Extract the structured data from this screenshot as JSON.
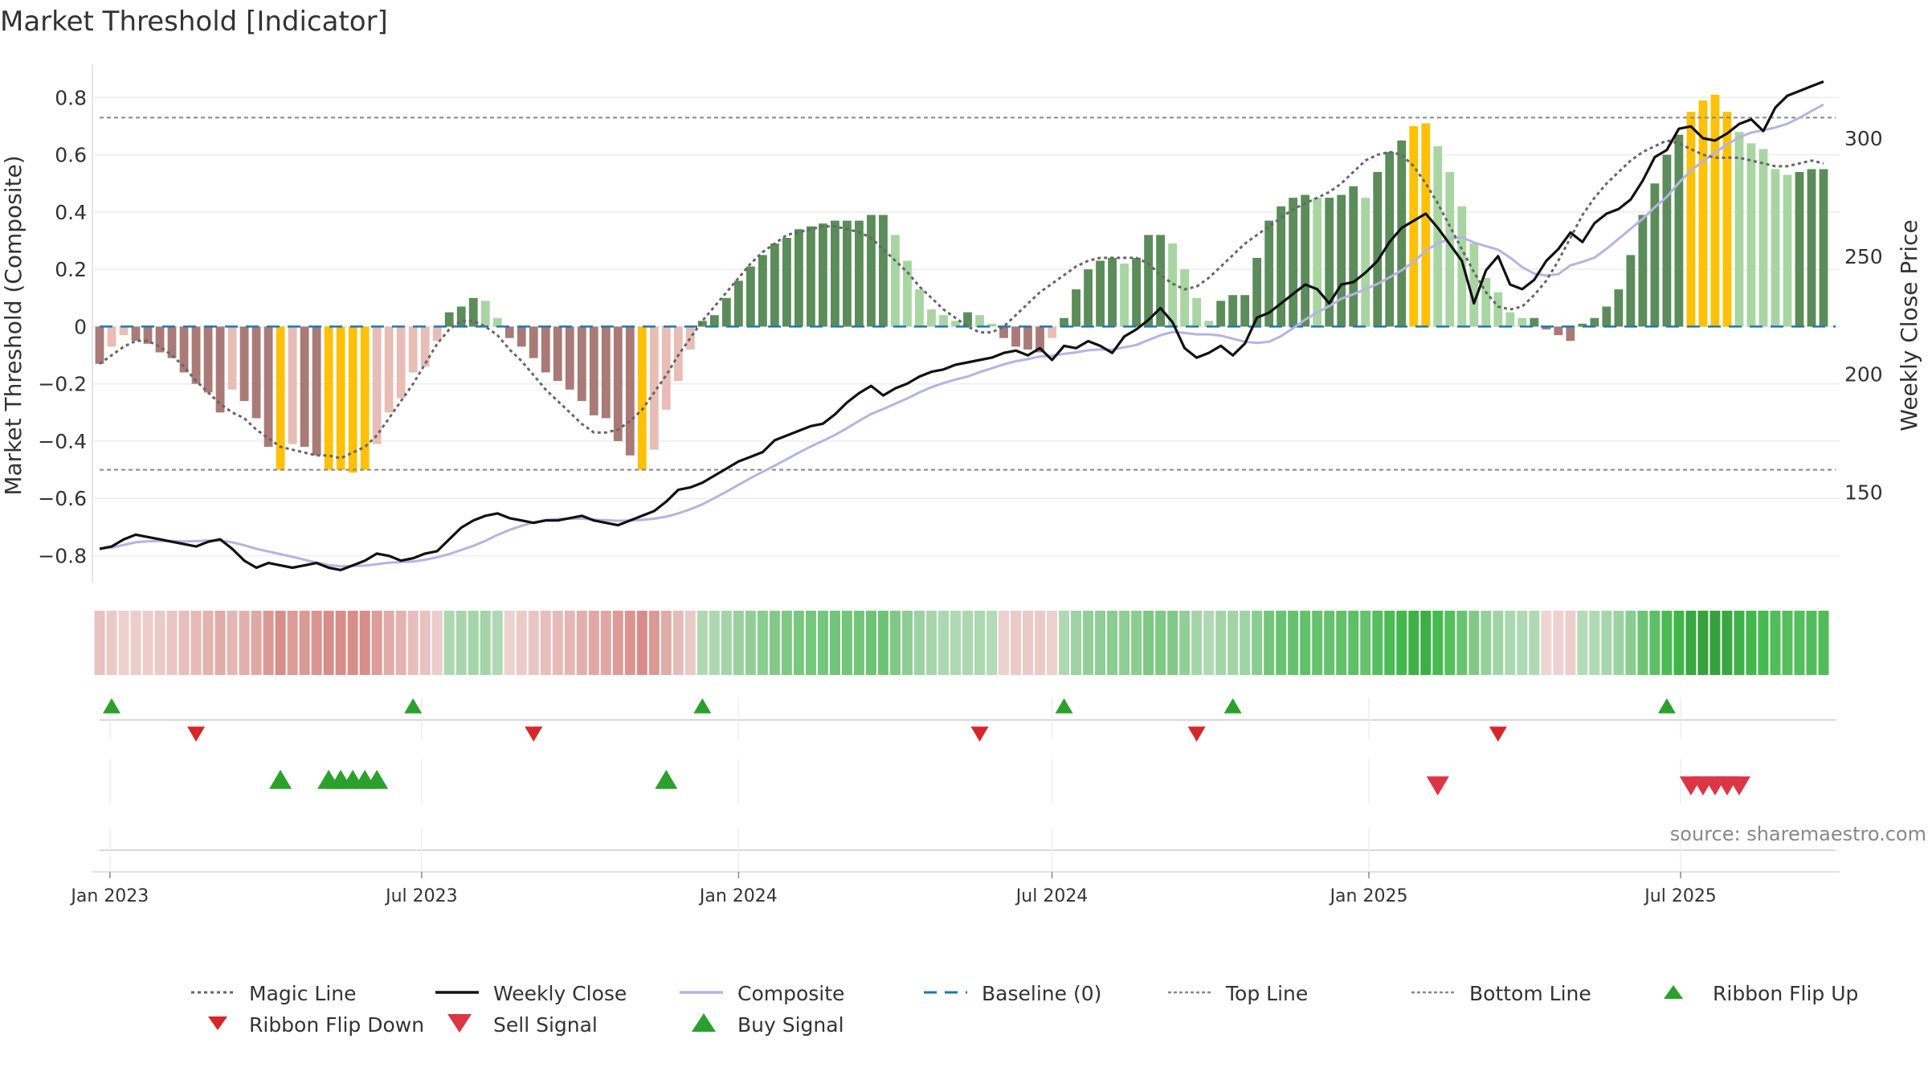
{
  "chart_data": {
    "type": "bar",
    "title": "Market Threshold [Indicator]",
    "ylabel": "Market Threshold (Composite)",
    "y2label": "Weekly Close Price",
    "source": "source: sharemaestro.com",
    "ylim": [
      -0.88,
      0.86
    ],
    "y2lim": [
      113.4,
      324.5
    ],
    "x_start": "2022-12-26",
    "x_end": "2025-09-22",
    "weeks": [
      "2022-12-26",
      "2023-01-02",
      "2023-01-09",
      "2023-01-16",
      "2023-01-23",
      "2023-01-30",
      "2023-02-06",
      "2023-02-13",
      "2023-02-20",
      "2023-02-27",
      "2023-03-06",
      "2023-03-13",
      "2023-03-20",
      "2023-03-27",
      "2023-04-03",
      "2023-04-10",
      "2023-04-17",
      "2023-04-24",
      "2023-05-01",
      "2023-05-08",
      "2023-05-15",
      "2023-05-22",
      "2023-05-29",
      "2023-06-05",
      "2023-06-12",
      "2023-06-19",
      "2023-06-26",
      "2023-07-03",
      "2023-07-10",
      "2023-07-17",
      "2023-07-24",
      "2023-07-31",
      "2023-08-07",
      "2023-08-14",
      "2023-08-21",
      "2023-08-28",
      "2023-09-04",
      "2023-09-11",
      "2023-09-18",
      "2023-09-25",
      "2023-10-02",
      "2023-10-09",
      "2023-10-16",
      "2023-10-23",
      "2023-10-30",
      "2023-11-06",
      "2023-11-13",
      "2023-11-20",
      "2023-11-27",
      "2023-12-04",
      "2023-12-11",
      "2023-12-18",
      "2023-12-25",
      "2024-01-01",
      "2024-01-08",
      "2024-01-15",
      "2024-01-22",
      "2024-01-29",
      "2024-02-05",
      "2024-02-12",
      "2024-02-19",
      "2024-02-26",
      "2024-03-04",
      "2024-03-11",
      "2024-03-18",
      "2024-03-25",
      "2024-04-01",
      "2024-04-08",
      "2024-04-15",
      "2024-04-22",
      "2024-04-29",
      "2024-05-06",
      "2024-05-13",
      "2024-05-20",
      "2024-05-27",
      "2024-06-03",
      "2024-06-10",
      "2024-06-17",
      "2024-06-24",
      "2024-07-01",
      "2024-07-08",
      "2024-07-15",
      "2024-07-22",
      "2024-07-29",
      "2024-08-05",
      "2024-08-12",
      "2024-08-19",
      "2024-08-26",
      "2024-09-02",
      "2024-09-09",
      "2024-09-16",
      "2024-09-23",
      "2024-09-30",
      "2024-10-07",
      "2024-10-14",
      "2024-10-21",
      "2024-10-28",
      "2024-11-04",
      "2024-11-11",
      "2024-11-18",
      "2024-11-25",
      "2024-12-02",
      "2024-12-09",
      "2024-12-16",
      "2024-12-23",
      "2024-12-30",
      "2025-01-06",
      "2025-01-13",
      "2025-01-20",
      "2025-01-27",
      "2025-02-03",
      "2025-02-10",
      "2025-02-17",
      "2025-02-24",
      "2025-03-03",
      "2025-03-10",
      "2025-03-17",
      "2025-03-24",
      "2025-03-31",
      "2025-04-07",
      "2025-04-14",
      "2025-04-21",
      "2025-04-28",
      "2025-05-05",
      "2025-05-12",
      "2025-05-19",
      "2025-05-26",
      "2025-06-02",
      "2025-06-09",
      "2025-06-16",
      "2025-06-23",
      "2025-06-30",
      "2025-07-07",
      "2025-07-14",
      "2025-07-21",
      "2025-07-28",
      "2025-08-04",
      "2025-08-11",
      "2025-08-18",
      "2025-08-25",
      "2025-09-01",
      "2025-09-08",
      "2025-09-15",
      "2025-09-22"
    ],
    "composite": [
      -0.13,
      -0.07,
      -0.03,
      -0.05,
      -0.06,
      -0.09,
      -0.11,
      -0.16,
      -0.2,
      -0.23,
      -0.3,
      -0.22,
      -0.26,
      -0.32,
      -0.42,
      -0.5,
      -0.41,
      -0.42,
      -0.45,
      -0.5,
      -0.5,
      -0.51,
      -0.5,
      -0.41,
      -0.3,
      -0.25,
      -0.16,
      -0.14,
      -0.05,
      0.05,
      0.07,
      0.1,
      0.09,
      0.03,
      -0.04,
      -0.07,
      -0.11,
      -0.16,
      -0.19,
      -0.22,
      -0.26,
      -0.31,
      -0.32,
      -0.4,
      -0.45,
      -0.5,
      -0.43,
      -0.29,
      -0.19,
      -0.08,
      0.02,
      0.04,
      0.1,
      0.16,
      0.21,
      0.25,
      0.29,
      0.31,
      0.34,
      0.35,
      0.36,
      0.37,
      0.37,
      0.37,
      0.39,
      0.39,
      0.32,
      0.23,
      0.13,
      0.06,
      0.04,
      0.02,
      0.05,
      0.04,
      0.01,
      -0.04,
      -0.07,
      -0.08,
      -0.09,
      -0.04,
      0.03,
      0.13,
      0.2,
      0.23,
      0.24,
      0.22,
      0.24,
      0.32,
      0.32,
      0.29,
      0.2,
      0.1,
      0.02,
      0.09,
      0.11,
      0.11,
      0.24,
      0.37,
      0.42,
      0.45,
      0.46,
      0.45,
      0.45,
      0.46,
      0.49,
      0.45,
      0.54,
      0.61,
      0.65,
      0.7,
      0.71,
      0.63,
      0.54,
      0.42,
      0.29,
      0.17,
      0.12,
      0.05,
      0.03,
      0.03,
      -0.01,
      -0.03,
      -0.05,
      0.01,
      0.03,
      0.07,
      0.13,
      0.25,
      0.39,
      0.5,
      0.6,
      0.67,
      0.75,
      0.79,
      0.81,
      0.75,
      0.68,
      0.64,
      0.62,
      0.55,
      0.53,
      0.54,
      0.55,
      0.55
    ],
    "magic_line": [
      -0.13,
      -0.1,
      -0.07,
      -0.05,
      -0.05,
      -0.07,
      -0.1,
      -0.14,
      -0.19,
      -0.23,
      -0.27,
      -0.3,
      -0.32,
      -0.36,
      -0.39,
      -0.42,
      -0.43,
      -0.44,
      -0.45,
      -0.45,
      -0.46,
      -0.44,
      -0.42,
      -0.38,
      -0.32,
      -0.26,
      -0.2,
      -0.13,
      -0.06,
      -0.01,
      0.02,
      0.02,
      0.0,
      -0.03,
      -0.08,
      -0.12,
      -0.17,
      -0.22,
      -0.26,
      -0.3,
      -0.34,
      -0.37,
      -0.37,
      -0.36,
      -0.33,
      -0.29,
      -0.23,
      -0.17,
      -0.1,
      -0.04,
      0.02,
      0.07,
      0.12,
      0.17,
      0.22,
      0.26,
      0.29,
      0.32,
      0.33,
      0.34,
      0.35,
      0.35,
      0.34,
      0.33,
      0.31,
      0.27,
      0.23,
      0.19,
      0.14,
      0.1,
      0.06,
      0.03,
      0.0,
      -0.02,
      -0.02,
      -0.0,
      0.04,
      0.08,
      0.12,
      0.15,
      0.18,
      0.21,
      0.23,
      0.24,
      0.24,
      0.24,
      0.24,
      0.22,
      0.18,
      0.15,
      0.13,
      0.14,
      0.17,
      0.21,
      0.25,
      0.29,
      0.32,
      0.35,
      0.38,
      0.41,
      0.43,
      0.45,
      0.47,
      0.5,
      0.54,
      0.58,
      0.6,
      0.61,
      0.6,
      0.56,
      0.5,
      0.43,
      0.35,
      0.27,
      0.19,
      0.12,
      0.07,
      0.06,
      0.07,
      0.11,
      0.16,
      0.23,
      0.31,
      0.39,
      0.45,
      0.5,
      0.54,
      0.58,
      0.61,
      0.63,
      0.65,
      0.64,
      0.62,
      0.6,
      0.59,
      0.59,
      0.59,
      0.58,
      0.57,
      0.56,
      0.56,
      0.57,
      0.58,
      0.57
    ],
    "weekly_close": [
      126,
      127,
      130,
      132,
      131,
      130,
      129,
      128,
      127,
      129,
      130,
      126,
      121,
      118,
      120,
      119,
      118,
      119,
      120,
      118,
      117,
      119,
      121,
      124,
      123,
      121,
      122,
      124,
      125,
      130,
      135,
      138,
      140,
      141,
      139,
      138,
      137,
      138,
      138,
      139,
      140,
      138,
      137,
      136,
      138,
      140,
      142,
      146,
      151,
      152,
      154,
      157,
      160,
      163,
      165,
      167,
      172,
      174,
      176,
      178,
      179,
      183,
      188,
      192,
      195,
      191,
      194,
      196,
      199,
      201,
      202,
      204,
      205,
      206,
      207,
      209,
      210,
      208,
      211,
      206,
      212,
      211,
      214,
      212,
      209,
      216,
      219,
      223,
      228,
      222,
      211,
      207,
      209,
      212,
      208,
      213,
      224,
      226,
      230,
      234,
      238,
      236,
      230,
      238,
      239,
      243,
      248,
      256,
      262,
      265,
      268,
      262,
      255,
      248,
      230,
      244,
      250,
      238,
      236,
      240,
      248,
      253,
      260,
      256,
      264,
      268,
      270,
      274,
      282,
      292,
      295,
      304,
      305,
      300,
      299,
      302,
      306,
      308,
      303,
      313,
      318,
      320,
      322,
      324
    ]
  },
  "legend": {
    "magic_line": "Magic Line",
    "weekly_close": "Weekly Close",
    "composite": "Composite",
    "baseline": "Baseline (0)",
    "top_line": "Top Line",
    "bottom_line": "Bottom Line",
    "ribbon_flip_up": "Ribbon Flip Up",
    "ribbon_flip_down": "Ribbon Flip Down",
    "sell_signal": "Sell Signal",
    "buy_signal": "Buy Signal"
  },
  "colors": {
    "bar_pos_dark": "#5b8c5a",
    "bar_pos_light": "#a8d5a2",
    "bar_neg_dark": "#a97a76",
    "bar_neg_light": "#e8bdb6",
    "bar_extreme": "#ffc107",
    "composite_line": "#b8b2e4",
    "close_line": "#111111",
    "magic_line": "#666666",
    "baseline": "#1f77b4",
    "flip_up": "#2ca02c",
    "flip_down": "#d62728",
    "buy": "#2ca02c",
    "sell": "#dc3545"
  }
}
